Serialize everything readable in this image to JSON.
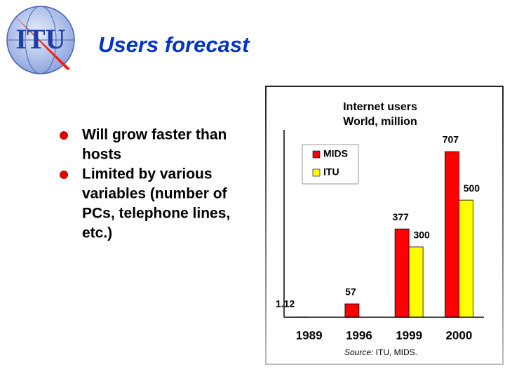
{
  "logo": "ITU",
  "title": "Users forecast",
  "bullets": [
    [
      "Will grow faster than",
      "hosts"
    ],
    [
      "Limited by various",
      "variables (number of",
      "PCs, telephone lines,",
      "etc.)"
    ]
  ],
  "chart_data": {
    "type": "bar",
    "title": [
      "Internet users",
      "World, million"
    ],
    "categories": [
      "1989",
      "1996",
      "1999",
      "2000"
    ],
    "series": [
      {
        "name": "MIDS",
        "color": "#ff0000",
        "values": [
          1.12,
          57,
          377,
          707
        ]
      },
      {
        "name": "ITU",
        "color": "#ffff00",
        "values": [
          null,
          null,
          300,
          500
        ]
      }
    ],
    "ylim": [
      0,
      800
    ],
    "source_label": "Source:",
    "source": "ITU, MIDS."
  }
}
